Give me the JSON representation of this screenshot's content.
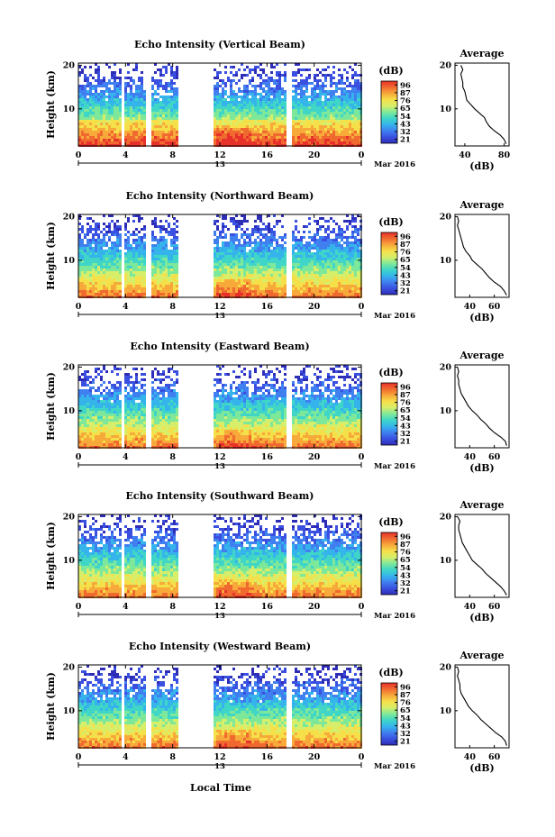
{
  "figure": {
    "xlabel": "Local Time",
    "date_label": "Mar 2016",
    "day_label": "13",
    "unit_label": "(dB)",
    "ylabel": "Height (km)",
    "colormap": [
      "#2e2db8",
      "#3a50e0",
      "#3f7ff0",
      "#35b4ec",
      "#3fd6c8",
      "#7ee89a",
      "#d6ee6a",
      "#f6e04a",
      "#f7a93a",
      "#f06a30",
      "#e8302a"
    ]
  },
  "chart_data": [
    {
      "type": "heatmap",
      "title": "Echo Intensity (Vertical Beam)",
      "ylabel": "Height (km)",
      "xlim": [
        0,
        24
      ],
      "ylim": [
        1.5,
        20.5
      ],
      "x_ticks": [
        "0",
        "4",
        "8",
        "12",
        "16",
        "20",
        "0"
      ],
      "y_ticks": [
        "10",
        "20"
      ],
      "data_gaps_hours": [
        [
          3.5,
          3.8
        ],
        [
          5.7,
          6.1
        ],
        [
          8.3,
          11.3
        ],
        [
          17.6,
          18.0
        ]
      ],
      "colorbar_ticks": [
        "96",
        "87",
        "76",
        "65",
        "54",
        "43",
        "32",
        "21"
      ],
      "average_profile": {
        "title": "Average",
        "xlabel": "(dB)",
        "x_ticks": [
          "40",
          "80"
        ],
        "y_ticks": [
          "10",
          "20"
        ],
        "xlim": [
          30,
          85
        ],
        "height_km": [
          2,
          3,
          4,
          5,
          6,
          7,
          8,
          9,
          10,
          11,
          12,
          13,
          14,
          15,
          16,
          17,
          18,
          19,
          20
        ],
        "value_db": [
          82,
          80,
          76,
          70,
          65,
          62,
          60,
          55,
          50,
          46,
          42,
          41,
          40,
          38,
          38,
          37,
          36,
          38,
          36
        ]
      }
    },
    {
      "type": "heatmap",
      "title": "Echo Intensity (Northward Beam)",
      "ylabel": "Height (km)",
      "xlim": [
        0,
        24
      ],
      "ylim": [
        1.5,
        20.5
      ],
      "x_ticks": [
        "0",
        "4",
        "8",
        "12",
        "16",
        "20",
        "0"
      ],
      "y_ticks": [
        "10",
        "20"
      ],
      "data_gaps_hours": [
        [
          3.5,
          3.8
        ],
        [
          5.7,
          6.1
        ],
        [
          8.3,
          11.3
        ],
        [
          17.6,
          18.0
        ]
      ],
      "colorbar_ticks": [
        "96",
        "87",
        "76",
        "65",
        "54",
        "43",
        "32",
        "21"
      ],
      "average_profile": {
        "title": "Average",
        "xlabel": "(dB)",
        "x_ticks": [
          "40",
          "60"
        ],
        "y_ticks": [
          "10",
          "20"
        ],
        "xlim": [
          28,
          72
        ],
        "height_km": [
          2,
          3,
          4,
          5,
          6,
          7,
          8,
          9,
          10,
          11,
          12,
          13,
          14,
          15,
          16,
          17,
          18,
          19,
          20
        ],
        "value_db": [
          70,
          68,
          65,
          60,
          56,
          53,
          50,
          46,
          42,
          40,
          37,
          35,
          34,
          33,
          32,
          31,
          30,
          31,
          30
        ]
      }
    },
    {
      "type": "heatmap",
      "title": "Echo Intensity (Eastward Beam)",
      "ylabel": "Height (km)",
      "xlim": [
        0,
        24
      ],
      "ylim": [
        1.5,
        20.5
      ],
      "x_ticks": [
        "0",
        "4",
        "8",
        "12",
        "16",
        "20",
        "0"
      ],
      "y_ticks": [
        "10",
        "20"
      ],
      "data_gaps_hours": [
        [
          3.5,
          3.8
        ],
        [
          5.7,
          6.1
        ],
        [
          8.3,
          11.3
        ],
        [
          17.6,
          18.0
        ]
      ],
      "colorbar_ticks": [
        "96",
        "87",
        "76",
        "65",
        "54",
        "43",
        "32",
        "21"
      ],
      "average_profile": {
        "title": "Average",
        "xlabel": "(dB)",
        "x_ticks": [
          "40",
          "60"
        ],
        "y_ticks": [
          "10",
          "20"
        ],
        "xlim": [
          28,
          72
        ],
        "height_km": [
          2,
          3,
          4,
          5,
          6,
          7,
          8,
          9,
          10,
          11,
          12,
          13,
          14,
          15,
          16,
          17,
          18,
          19,
          20
        ],
        "value_db": [
          70,
          69,
          65,
          60,
          56,
          53,
          49,
          46,
          42,
          39,
          37,
          35,
          33,
          32,
          31,
          31,
          30,
          31,
          30
        ]
      }
    },
    {
      "type": "heatmap",
      "title": "Echo Intensity (Southward Beam)",
      "ylabel": "Height (km)",
      "xlim": [
        0,
        24
      ],
      "ylim": [
        1.5,
        20.5
      ],
      "x_ticks": [
        "0",
        "4",
        "8",
        "12",
        "16",
        "20",
        "0"
      ],
      "y_ticks": [
        "10",
        "20"
      ],
      "data_gaps_hours": [
        [
          3.5,
          3.8
        ],
        [
          5.7,
          6.1
        ],
        [
          8.3,
          11.3
        ],
        [
          17.6,
          18.0
        ]
      ],
      "colorbar_ticks": [
        "96",
        "87",
        "76",
        "65",
        "54",
        "43",
        "32",
        "21"
      ],
      "average_profile": {
        "title": "Average",
        "xlabel": "(dB)",
        "x_ticks": [
          "40",
          "60"
        ],
        "y_ticks": [
          "10",
          "20"
        ],
        "xlim": [
          28,
          72
        ],
        "height_km": [
          2,
          3,
          4,
          5,
          6,
          7,
          8,
          9,
          10,
          11,
          12,
          13,
          14,
          15,
          16,
          17,
          18,
          19,
          20
        ],
        "value_db": [
          70,
          68,
          65,
          61,
          57,
          53,
          50,
          46,
          42,
          40,
          38,
          36,
          34,
          33,
          32,
          31,
          31,
          32,
          30
        ]
      }
    },
    {
      "type": "heatmap",
      "title": "Echo Intensity (Westward Beam)",
      "ylabel": "Height (km)",
      "xlim": [
        0,
        24
      ],
      "ylim": [
        1.5,
        20.5
      ],
      "x_ticks": [
        "0",
        "4",
        "8",
        "12",
        "16",
        "20",
        "0"
      ],
      "y_ticks": [
        "10",
        "20"
      ],
      "data_gaps_hours": [
        [
          3.5,
          3.8
        ],
        [
          5.7,
          6.1
        ],
        [
          8.3,
          11.3
        ],
        [
          17.6,
          18.0
        ]
      ],
      "colorbar_ticks": [
        "96",
        "87",
        "76",
        "65",
        "54",
        "43",
        "32",
        "21"
      ],
      "average_profile": {
        "title": "Average",
        "xlabel": "(dB)",
        "x_ticks": [
          "40",
          "60"
        ],
        "y_ticks": [
          "10",
          "20"
        ],
        "xlim": [
          28,
          72
        ],
        "height_km": [
          2,
          3,
          4,
          5,
          6,
          7,
          8,
          9,
          10,
          11,
          12,
          13,
          14,
          15,
          16,
          17,
          18,
          19,
          20
        ],
        "value_db": [
          70,
          69,
          66,
          61,
          57,
          53,
          49,
          46,
          42,
          39,
          37,
          35,
          33,
          32,
          32,
          31,
          30,
          31,
          30
        ]
      }
    }
  ]
}
